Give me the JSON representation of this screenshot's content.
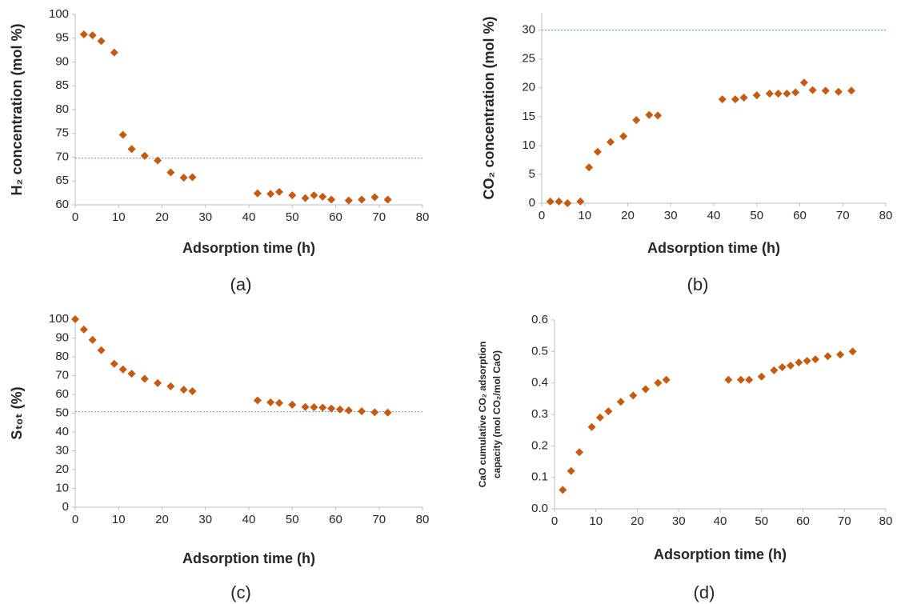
{
  "chart_data": [
    {
      "type": "scatter",
      "caption": "(a)",
      "xlabel": "Adsorption time (h)",
      "ylabel": "H₂ concentration (mol %)",
      "x": [
        2,
        4,
        6,
        9,
        11,
        13,
        16,
        19,
        22,
        25,
        27,
        42,
        45,
        47,
        50,
        53,
        55,
        57,
        59,
        63,
        66,
        69,
        72
      ],
      "series": [
        {
          "color": "#c55a11",
          "values": [
            95.8,
            95.6,
            94.4,
            92,
            74.7,
            71.7,
            70.3,
            69.3,
            66.8,
            65.7,
            65.8,
            62.4,
            62.3,
            62.7,
            62,
            61.4,
            62,
            61.7,
            61.1,
            60.9,
            61.1,
            61.6,
            61.1
          ]
        }
      ],
      "xlim": [
        0,
        80
      ],
      "xticks": [
        0,
        10,
        20,
        30,
        40,
        50,
        60,
        70,
        80
      ],
      "ylim": [
        60,
        100
      ],
      "yticks": [
        60,
        65,
        70,
        75,
        80,
        85,
        90,
        95,
        100
      ],
      "reference_line": {
        "value": 69.8,
        "color": "#5b9bd5"
      },
      "grid": false
    },
    {
      "type": "scatter",
      "caption": "(b)",
      "xlabel": "Adsorption time (h)",
      "ylabel": "CO₂ concentration (mol %)",
      "x": [
        2,
        4,
        6,
        9,
        11,
        13,
        16,
        19,
        22,
        25,
        27,
        42,
        45,
        47,
        50,
        53,
        55,
        57,
        59,
        61,
        63,
        66,
        69,
        72
      ],
      "series": [
        {
          "color": "#c55a11",
          "values": [
            0.3,
            0.3,
            0,
            0.3,
            6.2,
            8.9,
            10.6,
            11.6,
            14.4,
            15.3,
            15.2,
            18,
            18,
            18.3,
            18.7,
            19,
            19,
            19,
            19.2,
            20.9,
            19.6,
            19.5,
            19.3,
            19.5
          ]
        }
      ],
      "xlim": [
        0,
        80
      ],
      "xticks": [
        0,
        10,
        20,
        30,
        40,
        50,
        60,
        70,
        80
      ],
      "ylim": [
        0,
        33
      ],
      "yticks": [
        0,
        5,
        10,
        15,
        20,
        25,
        30
      ],
      "reference_line": {
        "value": 30,
        "color": "#5b9bd5"
      },
      "grid": false
    },
    {
      "type": "scatter",
      "caption": "(c)",
      "xlabel": "Adsorption time (h)",
      "ylabel": "Sₜₒₜ (%)",
      "x": [
        0,
        2,
        4,
        6,
        9,
        11,
        13,
        16,
        19,
        22,
        25,
        27,
        42,
        45,
        47,
        50,
        53,
        55,
        57,
        59,
        61,
        63,
        66,
        69,
        72
      ],
      "series": [
        {
          "color": "#c55a11",
          "values": [
            100,
            94.5,
            89,
            83.5,
            76.3,
            73.3,
            71,
            68.3,
            66,
            64.3,
            62.5,
            61.7,
            56.8,
            55.8,
            55.4,
            54.5,
            53.3,
            53.2,
            53,
            52.5,
            52,
            51.5,
            51,
            50.5,
            50.3
          ]
        }
      ],
      "xlim": [
        0,
        80
      ],
      "xticks": [
        0,
        10,
        20,
        30,
        40,
        50,
        60,
        70,
        80
      ],
      "ylim": [
        0,
        100
      ],
      "yticks": [
        0,
        10,
        20,
        30,
        40,
        50,
        60,
        70,
        80,
        90,
        100
      ],
      "reference_line": {
        "value": 50.8,
        "color": "#5b9bd5"
      },
      "grid": false
    },
    {
      "type": "scatter",
      "caption": "(d)",
      "xlabel": "Adsorption time (h)",
      "ylabel": [
        "CaO cumulative CO₂ adsorption",
        "capacity (mol CO₂/mol CaO)"
      ],
      "x": [
        2,
        4,
        6,
        9,
        11,
        13,
        16,
        19,
        22,
        25,
        27,
        42,
        45,
        47,
        50,
        53,
        55,
        57,
        59,
        61,
        63,
        66,
        69,
        72
      ],
      "series": [
        {
          "color": "#c55a11",
          "values": [
            0.06,
            0.12,
            0.18,
            0.26,
            0.29,
            0.31,
            0.34,
            0.36,
            0.38,
            0.4,
            0.41,
            0.41,
            0.41,
            0.41,
            0.42,
            0.44,
            0.45,
            0.455,
            0.465,
            0.47,
            0.475,
            0.485,
            0.49,
            0.5
          ]
        }
      ],
      "xlim": [
        0,
        80
      ],
      "xticks": [
        0,
        10,
        20,
        30,
        40,
        50,
        60,
        70,
        80
      ],
      "ylim": [
        0,
        0.6
      ],
      "yticks": [
        {
          "value": 0,
          "label": "0.0"
        },
        0.1,
        0.2,
        0.3,
        0.4,
        0.5,
        0.6
      ],
      "grid": false
    }
  ]
}
